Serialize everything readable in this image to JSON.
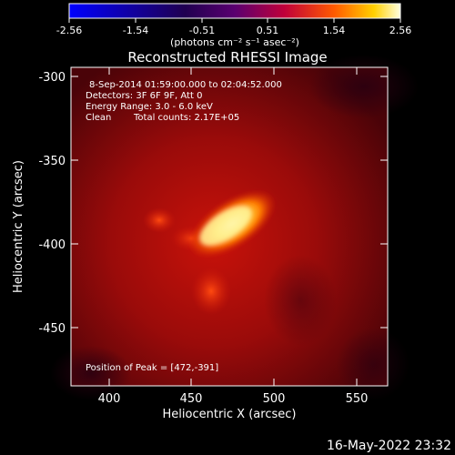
{
  "colorbar": {
    "ticks": [
      "-2.56",
      "-1.54",
      "-0.51",
      "0.51",
      "1.54",
      "2.56"
    ],
    "units": "(photons cm⁻² s⁻¹ asec⁻²)"
  },
  "title": "Reconstructed RHESSI Image",
  "info": {
    "time_range": "8-Sep-2014 01:59:00.000 to 02:04:52.000",
    "detectors": "Detectors: 3F 6F 9F, Att 0",
    "energy": "Energy Range: 3.0 - 6.0 keV",
    "clean": "Clean",
    "counts": "Total counts: 2.17E+05",
    "peak": "Position of Peak = [472,-391]"
  },
  "axes": {
    "xlabel": "Heliocentric X (arcsec)",
    "ylabel": "Heliocentric Y (arcsec)",
    "xticks": [
      "400",
      "450",
      "500",
      "550"
    ],
    "yticks": [
      "-300",
      "-350",
      "-400",
      "-450"
    ]
  },
  "footer": {
    "date": "16-May-2022 23:32"
  },
  "colors": {
    "background": "#000000",
    "text": "#ffffff"
  }
}
